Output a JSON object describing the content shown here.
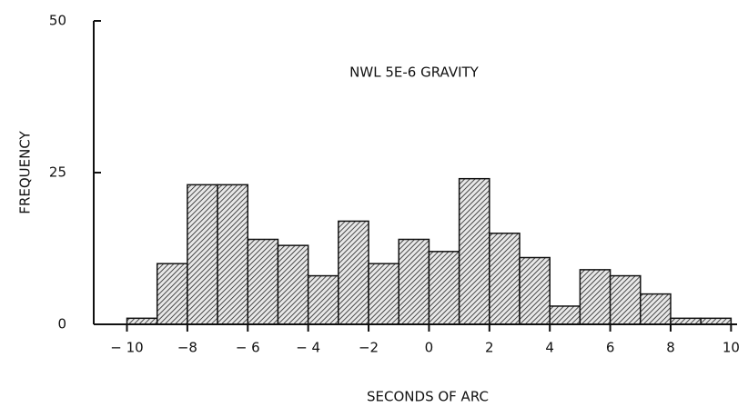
{
  "chart_data": {
    "type": "histogram",
    "annotation": "NWL 5E-6 GRAVITY",
    "xlabel": "SECONDS OF ARC",
    "ylabel": "FREQUENCY",
    "bins": [
      -10,
      -9,
      -8,
      -7,
      -6,
      -5,
      -4,
      -3,
      -2,
      -1,
      0,
      1,
      2,
      3,
      4,
      5,
      6,
      7,
      8,
      9,
      10
    ],
    "counts": [
      1,
      10,
      23,
      23,
      14,
      13,
      8,
      17,
      10,
      14,
      12,
      24,
      15,
      11,
      3,
      9,
      8,
      5,
      1,
      1
    ],
    "xlim": [
      -11.1,
      10.2
    ],
    "xticks": [
      {
        "value": -10,
        "label": "− 10"
      },
      {
        "value": -8,
        "label": "−8"
      },
      {
        "value": -6,
        "label": "− 6"
      },
      {
        "value": -4,
        "label": "− 4"
      },
      {
        "value": -2,
        "label": "−2"
      },
      0,
      2,
      4,
      6,
      8,
      10
    ],
    "ylim": [
      0,
      50
    ],
    "yticks": [
      0,
      25,
      50
    ]
  }
}
